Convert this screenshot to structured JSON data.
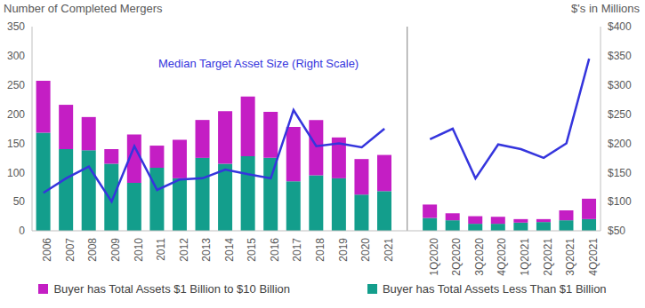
{
  "chart_data": {
    "type": "bar",
    "stacked": true,
    "grid": false,
    "legend": "bottom",
    "y_label": "Number of Completed Mergers",
    "y2_label": "$'s in Millions",
    "categories": [
      "2006",
      "2007",
      "2008",
      "2009",
      "2010",
      "2011",
      "2012",
      "2013",
      "2014",
      "2015",
      "2016",
      "2017",
      "2018",
      "2019",
      "2020",
      "2021",
      null,
      "1Q2020",
      "2Q2020",
      "3Q2020",
      "4Q2020",
      "1Q2021",
      "2Q2021",
      "3Q2021",
      "4Q2021"
    ],
    "ylim": [
      0,
      350
    ],
    "yticks": [
      0,
      50,
      100,
      150,
      200,
      250,
      300,
      350
    ],
    "y2lim": [
      50,
      400
    ],
    "y2ticks": [
      {
        "value": 50,
        "label": "$50"
      },
      {
        "value": 100,
        "label": "$100"
      },
      {
        "value": 150,
        "label": "$150"
      },
      {
        "value": 200,
        "label": "$200"
      },
      {
        "value": 250,
        "label": "$250"
      },
      {
        "value": 300,
        "label": "$300"
      },
      {
        "value": 350,
        "label": "$350"
      },
      {
        "value": 400,
        "label": "$400"
      }
    ],
    "series": [
      {
        "name": "Buyer has Total Assets $1 Billion to $10 Billion",
        "type": "bar",
        "color": "#c41ec4",
        "values": [
          89,
          76,
          57,
          25,
          83,
          38,
          66,
          65,
          90,
          102,
          79,
          93,
          95,
          70,
          61,
          62,
          null,
          23,
          12,
          13,
          12,
          6,
          5,
          17,
          35
        ]
      },
      {
        "name": "Buyer has Total Assets Less Than $1 Billion",
        "type": "bar",
        "color": "#139e8c",
        "values": [
          168,
          140,
          138,
          115,
          82,
          108,
          90,
          125,
          115,
          128,
          125,
          85,
          95,
          90,
          62,
          68,
          null,
          22,
          18,
          12,
          12,
          14,
          15,
          18,
          20
        ]
      },
      {
        "name": "Median Target Asset Size (Right Scale)",
        "type": "line",
        "axis": "y2",
        "color": "#3535dd",
        "values": [
          115,
          140,
          160,
          100,
          195,
          120,
          138,
          140,
          155,
          147,
          140,
          257,
          195,
          200,
          193,
          225,
          null,
          207,
          225,
          140,
          198,
          190,
          175,
          200,
          345
        ]
      }
    ]
  }
}
